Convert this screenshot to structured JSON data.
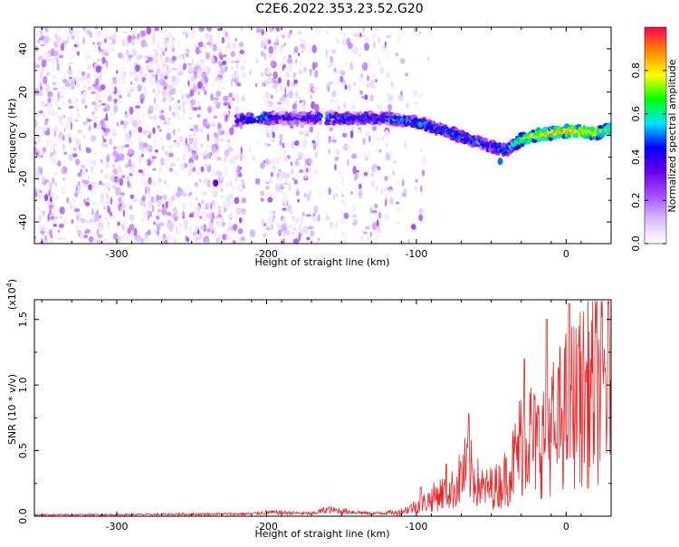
{
  "figure_title": "C2E6.2022.353.23.52.G20",
  "colors": {
    "snr_line": "#e8292b",
    "colormap": [
      "#ffffff",
      "#d9bdf7",
      "#a64dff",
      "#6a00e6",
      "#0000ff",
      "#00e5ff",
      "#00ff00",
      "#ffff00",
      "#ff8800",
      "#ff0050"
    ],
    "background": "#ffffff"
  },
  "chart_data": [
    {
      "type": "heatmap",
      "name": "spectrogram",
      "xlabel": "Height of straight line (km)",
      "ylabel": "Frequency (Hz)",
      "xlim": [
        -355,
        30
      ],
      "ylim": [
        -50,
        50
      ],
      "x_ticks": [
        -300,
        -200,
        -100,
        0
      ],
      "x_tick_labels": [
        "-300",
        "-200",
        "-100",
        "0"
      ],
      "y_ticks": [
        -40,
        -20,
        0,
        20,
        40
      ],
      "y_tick_labels": [
        "-40",
        "-20",
        "0",
        "20",
        "40"
      ],
      "colorbar": {
        "label": "Normalized spectral amplitude",
        "range": [
          0,
          1
        ],
        "ticks": [
          0.0,
          0.2,
          0.4,
          0.6,
          0.8
        ],
        "tick_labels": [
          "0.0",
          "0.2",
          "0.4",
          "0.6",
          "0.8"
        ]
      },
      "noise_region_x": [
        -355,
        -115
      ],
      "gap_x": [
        [
          -215,
          -203
        ],
        [
          -165,
          -160
        ]
      ],
      "signal_band": {
        "x": [
          -220,
          -200,
          -180,
          -160,
          -140,
          -120,
          -100,
          -80,
          -60,
          -50,
          -40,
          -30,
          -20,
          0,
          20,
          30
        ],
        "freq": [
          7,
          8,
          8,
          8,
          8,
          8,
          6,
          2,
          -3,
          -5,
          -7,
          -2,
          0,
          2,
          1,
          3
        ],
        "amplitude": [
          0.45,
          0.5,
          0.4,
          0.5,
          0.45,
          0.5,
          0.55,
          0.5,
          0.5,
          0.5,
          0.5,
          0.7,
          0.8,
          0.85,
          0.8,
          0.7
        ]
      },
      "outliers": [
        {
          "x": -234,
          "freq": -22,
          "amplitude": 0.35
        },
        {
          "x": -44,
          "freq": -12,
          "amplitude": 0.5
        }
      ]
    },
    {
      "type": "line",
      "name": "snr",
      "xlabel": "Height of straight line (km)",
      "ylabel": "SNR (10 * v/v)",
      "multiplier_label": "(x10",
      "multiplier_exp": "4",
      "xlim": [
        -355,
        30
      ],
      "ylim": [
        0,
        1.65
      ],
      "x_ticks": [
        -300,
        -200,
        -100,
        0
      ],
      "x_tick_labels": [
        "-300",
        "-200",
        "-100",
        "0"
      ],
      "y_ticks": [
        0,
        0.5,
        1.0,
        1.5
      ],
      "y_tick_labels": [
        "0.0",
        "0.5",
        "1.0",
        "1.5"
      ],
      "envelope": {
        "x": [
          -355,
          -300,
          -250,
          -210,
          -200,
          -170,
          -160,
          -130,
          -115,
          -105,
          -95,
          -85,
          -75,
          -70,
          -66,
          -60,
          -55,
          -45,
          -40,
          -35,
          -30,
          -25,
          -20,
          -15,
          -10,
          -5,
          0,
          5,
          10,
          15,
          20,
          25,
          30
        ],
        "y": [
          0.01,
          0.012,
          0.015,
          0.018,
          0.03,
          0.02,
          0.05,
          0.02,
          0.03,
          0.08,
          0.15,
          0.25,
          0.3,
          0.45,
          0.55,
          0.4,
          0.3,
          0.35,
          0.45,
          0.6,
          0.85,
          0.95,
          0.8,
          0.9,
          1.0,
          1.1,
          1.2,
          1.3,
          1.35,
          1.4,
          1.45,
          1.5,
          1.55
        ]
      },
      "spikes": [
        {
          "x": -97,
          "y": 0.22
        },
        {
          "x": -80,
          "y": 0.4
        },
        {
          "x": -65,
          "y": 0.78
        },
        {
          "x": -28,
          "y": 1.2
        },
        {
          "x": -13,
          "y": 1.5
        },
        {
          "x": -7,
          "y": 0.52
        },
        {
          "x": 2,
          "y": 1.62
        },
        {
          "x": 8,
          "y": 1.3
        }
      ]
    }
  ]
}
